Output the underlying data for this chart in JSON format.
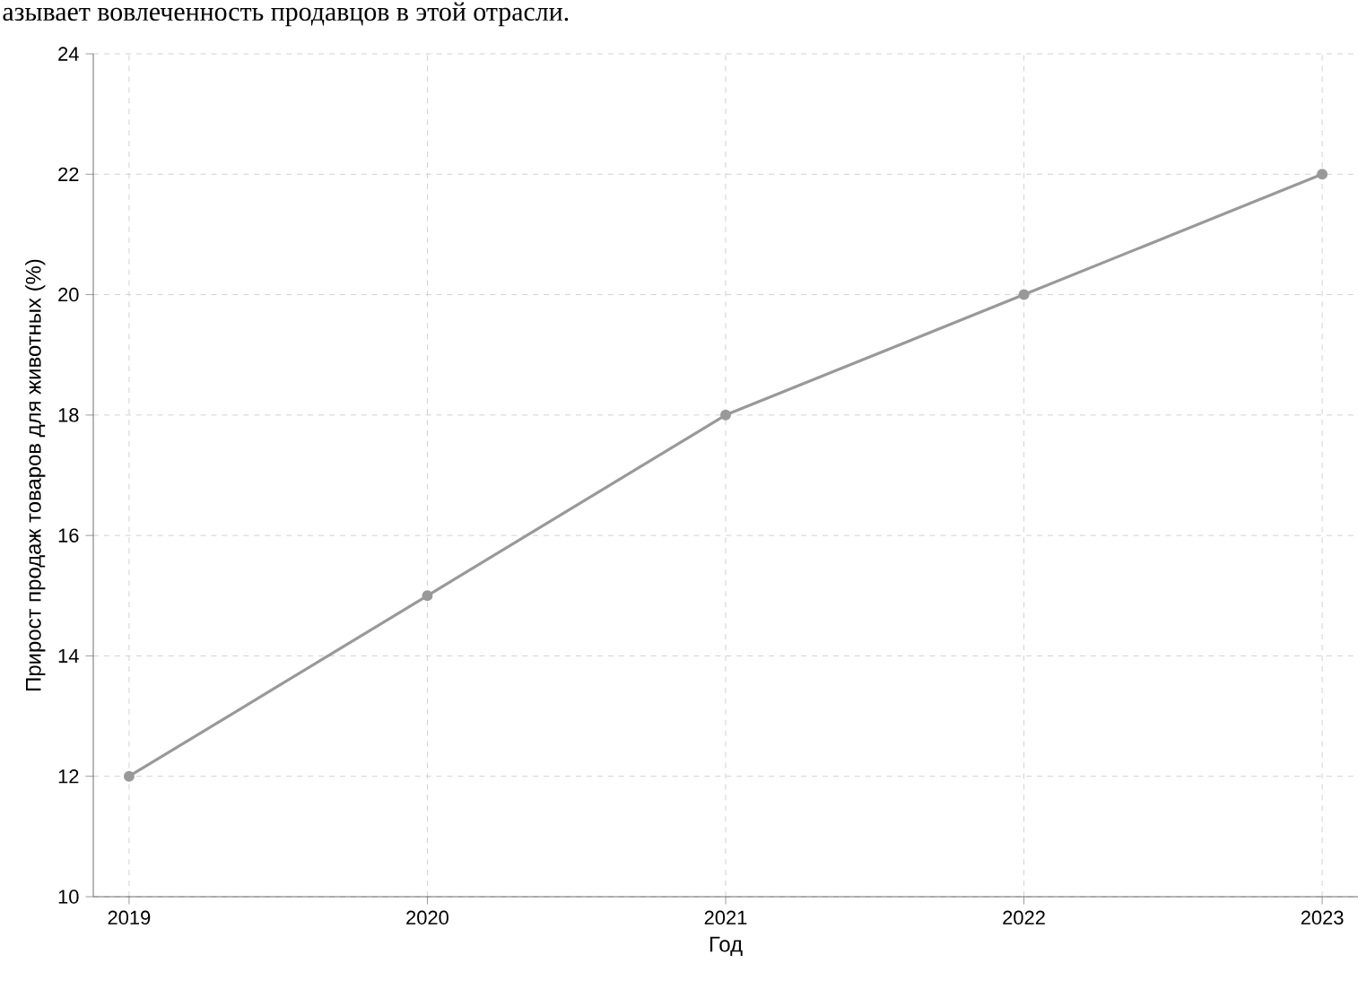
{
  "chart_data": {
    "type": "line",
    "annotations": [
      "азывает вовлеченность продавцов в этой отрасли."
    ],
    "xlabel": "Год",
    "ylabel": "Прирост продаж товаров для животных (%)",
    "categories": [
      "2019",
      "2020",
      "2021",
      "2022",
      "2023"
    ],
    "series": [
      {
        "color": "#999999",
        "values": [
          12,
          15,
          18,
          20,
          22
        ]
      }
    ],
    "ylim": [
      10,
      24
    ],
    "yticks": [
      10,
      12,
      14,
      16,
      18,
      20,
      22,
      24
    ],
    "grid": true,
    "marker": "circle",
    "line_style": "solid"
  }
}
